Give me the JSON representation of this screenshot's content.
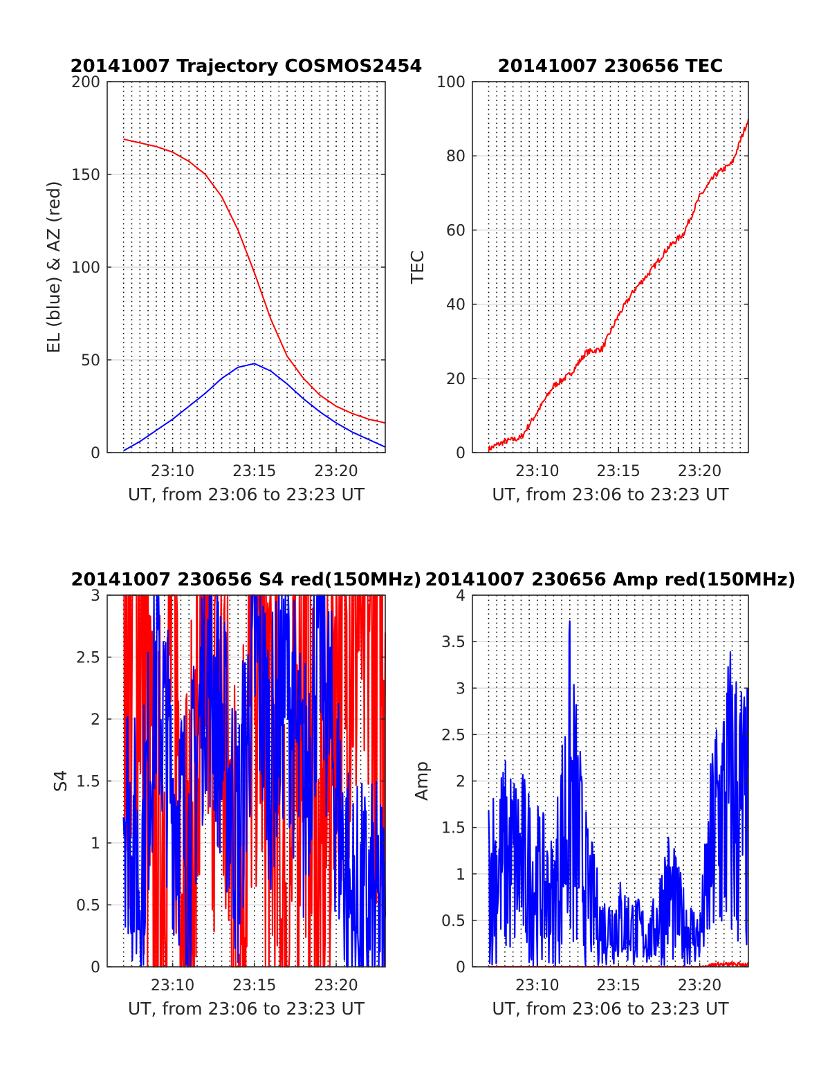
{
  "colors": {
    "red": "#ff0000",
    "blue": "#0000ff",
    "grid": "#dcdcdc",
    "axis": "#262626"
  },
  "chart_data": [
    {
      "type": "line",
      "title": "20141007 Trajectory COSMOS2454",
      "xlabel": "UT, from 23:06 to 23:23 UT",
      "ylabel": "EL (blue) & AZ (red)",
      "xlim": [
        "23:06",
        "23:23"
      ],
      "ylim": [
        0,
        200
      ],
      "xticks": [
        "23:10",
        "23:15",
        "23:20"
      ],
      "yticks": [
        0,
        50,
        100,
        150,
        200
      ],
      "grid": true,
      "x": [
        "23:07",
        "23:08",
        "23:09",
        "23:10",
        "23:11",
        "23:12",
        "23:13",
        "23:14",
        "23:15",
        "23:16",
        "23:17",
        "23:18",
        "23:19",
        "23:20",
        "23:21",
        "23:22",
        "23:23"
      ],
      "series": [
        {
          "color": "red",
          "values": [
            169,
            167,
            165,
            162,
            157,
            150,
            138,
            120,
            97,
            72,
            52,
            40,
            31,
            25,
            21,
            18,
            16
          ]
        },
        {
          "color": "blue",
          "values": [
            1,
            6,
            12,
            18,
            25,
            32,
            40,
            46,
            48,
            44,
            37,
            29,
            22,
            16,
            11,
            7,
            3
          ]
        }
      ]
    },
    {
      "type": "line",
      "title": "20141007 230656 TEC",
      "xlabel": "UT, from 23:06 to 23:23 UT",
      "ylabel": "TEC",
      "xlim": [
        "23:06",
        "23:23"
      ],
      "ylim": [
        0,
        100
      ],
      "xticks": [
        "23:10",
        "23:15",
        "23:20"
      ],
      "yticks": [
        0,
        20,
        40,
        60,
        80,
        100
      ],
      "grid": true,
      "x": [
        "23:07",
        "23:08",
        "23:09",
        "23:10",
        "23:11",
        "23:12",
        "23:13",
        "23:14",
        "23:15",
        "23:16",
        "23:17",
        "23:18",
        "23:19",
        "23:20",
        "23:21",
        "23:22",
        "23:23"
      ],
      "series": [
        {
          "color": "red",
          "values": [
            1,
            3,
            4,
            11,
            18,
            21,
            27,
            28,
            37,
            44,
            49,
            55,
            59,
            69,
            75,
            78,
            90
          ]
        }
      ]
    },
    {
      "type": "line",
      "title": "20141007 230656 S4 red(150MHz)",
      "xlabel": "UT, from 23:06 to 23:23 UT",
      "ylabel": "S4",
      "xlim": [
        "23:06",
        "23:23"
      ],
      "ylim": [
        0,
        3
      ],
      "xticks": [
        "23:10",
        "23:15",
        "23:20"
      ],
      "yticks": [
        0,
        0.5,
        1,
        1.5,
        2,
        2.5,
        3
      ],
      "grid": true,
      "x": [
        "23:07",
        "23:08",
        "23:09",
        "23:10",
        "23:11",
        "23:12",
        "23:13",
        "23:14",
        "23:15",
        "23:16",
        "23:17",
        "23:18",
        "23:19",
        "23:20",
        "23:21",
        "23:22",
        "23:23"
      ],
      "series": [
        {
          "color": "red",
          "values": [
            2.7,
            3,
            0,
            3,
            0,
            3,
            2.2,
            0,
            3,
            1.8,
            0,
            3,
            0,
            3,
            3,
            3,
            2.7
          ],
          "note_style": "spiky"
        },
        {
          "color": "blue",
          "values": [
            1.5,
            0.7,
            2.4,
            1.4,
            1.0,
            2.5,
            1.9,
            1.0,
            2.6,
            1.7,
            2.4,
            1.3,
            2.8,
            1.4,
            0.4,
            0.4,
            0.4
          ]
        }
      ]
    },
    {
      "type": "line",
      "title": "20141007 230656 Amp red(150MHz)",
      "xlabel": "UT, from 23:06 to 23:23 UT",
      "ylabel": "Amp",
      "xlim": [
        "23:06",
        "23:23"
      ],
      "ylim": [
        0,
        4
      ],
      "xticks": [
        "23:10",
        "23:15",
        "23:20"
      ],
      "yticks": [
        0,
        0.5,
        1,
        1.5,
        2,
        2.5,
        3,
        3.5,
        4
      ],
      "grid": true,
      "x": [
        "23:07",
        "23:08",
        "23:09",
        "23:10",
        "23:11",
        "23:12",
        "23:13",
        "23:14",
        "23:15",
        "23:16",
        "23:17",
        "23:18",
        "23:19",
        "23:20",
        "23:21",
        "23:22",
        "23:23"
      ],
      "series": [
        {
          "color": "blue",
          "values": [
            2.0,
            2.3,
            2.2,
            1.8,
            1.4,
            3.8,
            1.7,
            0.8,
            1.0,
            0.8,
            0.6,
            1.6,
            0.9,
            0.6,
            3.0,
            3.7,
            3.0
          ]
        },
        {
          "color": "red",
          "values": [
            0,
            0,
            0,
            0,
            0,
            0,
            0,
            0,
            0,
            0,
            0,
            0,
            0,
            0,
            0.05,
            0.05,
            0.05
          ]
        }
      ]
    }
  ]
}
